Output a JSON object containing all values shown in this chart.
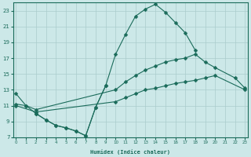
{
  "xlabel": "Humidex (Indice chaleur)",
  "bg_color": "#cce8e8",
  "grid_color": "#aacccc",
  "line_color": "#1a6b5a",
  "lines": [
    {
      "x": [
        0,
        1,
        2,
        3,
        4,
        5,
        6,
        7,
        8,
        9,
        10,
        11,
        12,
        13,
        14,
        15,
        16,
        17,
        18
      ],
      "y": [
        12.5,
        11.0,
        10.0,
        9.2,
        8.5,
        8.2,
        7.8,
        7.2,
        10.8,
        13.5,
        17.5,
        20.0,
        22.3,
        23.2,
        23.8,
        22.8,
        21.5,
        20.2,
        18.0
      ]
    },
    {
      "x": [
        0,
        1,
        2,
        10,
        11,
        12,
        13,
        14,
        15,
        16,
        17,
        18,
        19,
        20,
        22,
        23
      ],
      "y": [
        11.2,
        11.0,
        10.5,
        13.0,
        14.0,
        14.8,
        15.5,
        16.0,
        16.5,
        16.8,
        17.0,
        17.5,
        16.5,
        15.8,
        14.5,
        13.2
      ]
    },
    {
      "x": [
        0,
        2,
        10,
        11,
        12,
        13,
        14,
        15,
        16,
        17,
        18,
        19,
        20,
        23
      ],
      "y": [
        11.0,
        10.2,
        11.5,
        12.0,
        12.5,
        13.0,
        13.2,
        13.5,
        13.8,
        14.0,
        14.2,
        14.5,
        14.8,
        13.0
      ]
    },
    {
      "x": [
        2,
        3,
        4,
        5,
        6,
        7,
        8,
        9
      ],
      "y": [
        10.0,
        9.2,
        8.5,
        8.2,
        7.8,
        7.2,
        10.8,
        13.5
      ]
    }
  ],
  "xlim": [
    -0.3,
    23.3
  ],
  "ylim": [
    7,
    24
  ],
  "yticks": [
    7,
    9,
    11,
    13,
    15,
    17,
    19,
    21,
    23
  ],
  "xticks": [
    0,
    1,
    2,
    3,
    4,
    5,
    6,
    7,
    8,
    9,
    10,
    11,
    12,
    13,
    14,
    15,
    16,
    17,
    18,
    19,
    20,
    21,
    22,
    23
  ],
  "figsize": [
    3.2,
    2.0
  ],
  "dpi": 100
}
